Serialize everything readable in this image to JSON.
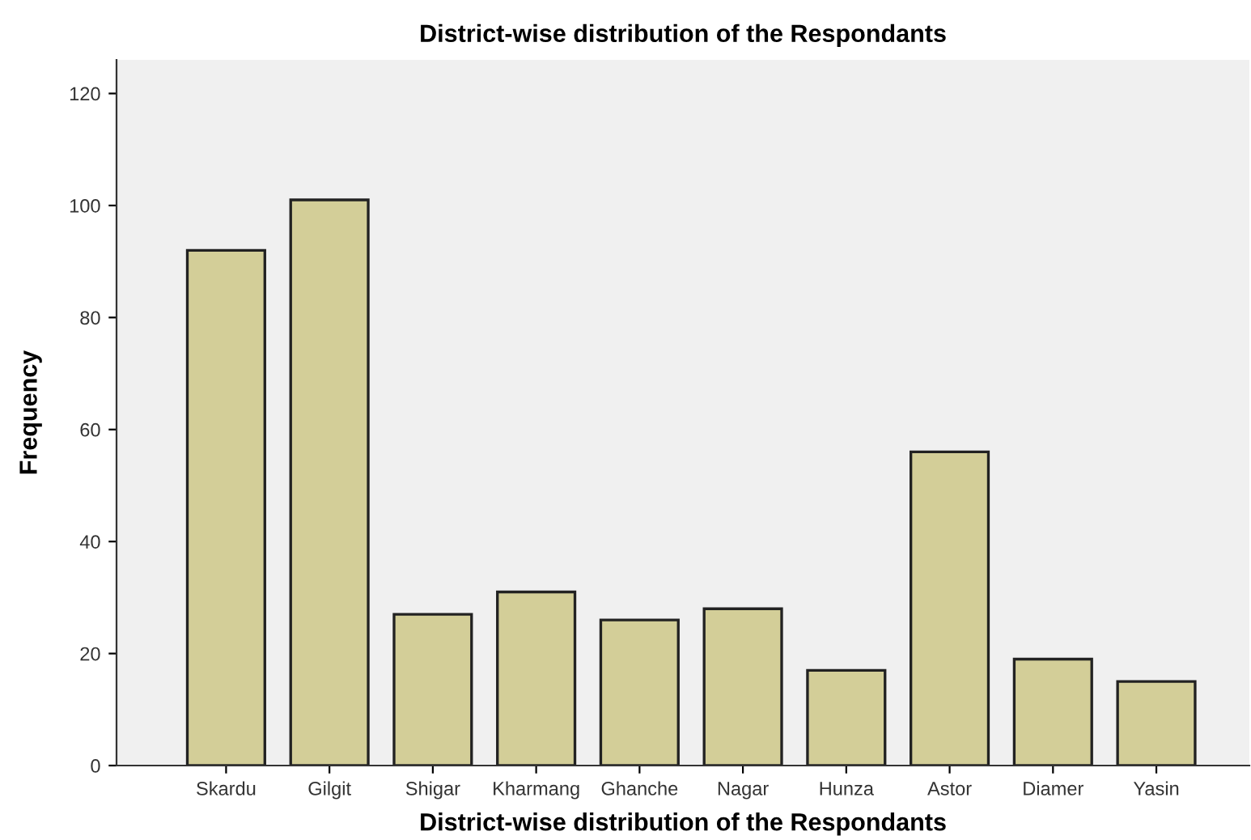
{
  "chart_data": {
    "type": "bar",
    "title": "District-wise distribution of the Respondants",
    "xlabel": "District-wise distribution of the Respondants",
    "ylabel": "Frequency",
    "categories": [
      "Skardu",
      "Gilgit",
      "Shigar",
      "Kharmang",
      "Ghanche",
      "Nagar",
      "Hunza",
      "Astor",
      "Diamer",
      "Yasin"
    ],
    "values": [
      92,
      101,
      27,
      31,
      26,
      28,
      17,
      56,
      19,
      15
    ],
    "color": "#d3ce98",
    "ylim": [
      0,
      126
    ],
    "yticks": [
      0,
      20,
      40,
      60,
      80,
      100,
      120
    ],
    "grid": false,
    "legend": false
  }
}
